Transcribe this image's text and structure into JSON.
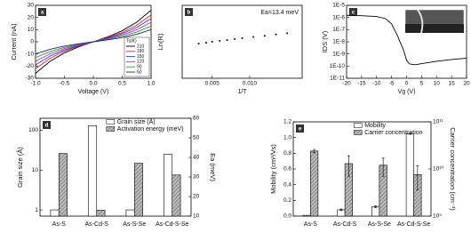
{
  "chart_data": [
    {
      "type": "line",
      "label": "a",
      "xlabel": "Voltage (V)",
      "ylabel": "Current (nA)",
      "x": [
        -1,
        -0.75,
        -0.5,
        -0.25,
        0,
        0.25,
        0.5,
        0.75,
        1
      ],
      "xlim": [
        -1,
        1
      ],
      "xticks": [
        {
          "value": -1,
          "label": "-1.0"
        },
        {
          "value": -0.5,
          "label": "-0.5"
        },
        {
          "value": 0,
          "label": "0.0"
        },
        {
          "value": 0.5,
          "label": "0.5"
        },
        {
          "value": 1,
          "label": "1.0"
        }
      ],
      "ylim": [
        -30,
        30
      ],
      "yticks": [
        -30,
        -20,
        -10,
        0,
        10,
        20,
        30
      ],
      "legend_title": "Ts(K)",
      "series": [
        {
          "name": "210",
          "color": "#000000",
          "values": [
            -26,
            -16.1,
            -9.1,
            -4.1,
            0,
            4.1,
            9.1,
            16.1,
            26
          ]
        },
        {
          "name": "180",
          "color": "#e02020",
          "values": [
            -22,
            -13.6,
            -7.7,
            -3.4,
            0,
            3.4,
            7.7,
            13.6,
            22
          ]
        },
        {
          "name": "150",
          "color": "#2040e0",
          "values": [
            -19,
            -11.8,
            -6.7,
            -3,
            0,
            3,
            6.7,
            11.8,
            19
          ]
        },
        {
          "name": "120",
          "color": "#d020d0",
          "values": [
            -16,
            -9.9,
            -5.6,
            -2.5,
            0,
            2.5,
            5.6,
            9.9,
            16
          ]
        },
        {
          "name": "90",
          "color": "#20a020",
          "values": [
            -13,
            -8,
            -4.6,
            -2,
            0,
            2,
            4.6,
            8,
            13
          ]
        },
        {
          "name": "60",
          "color": "#202080",
          "values": [
            -10,
            -6.2,
            -3.5,
            -1.6,
            0,
            1.6,
            3.5,
            6.2,
            10
          ]
        }
      ]
    },
    {
      "type": "scatter",
      "label": "b",
      "xlabel": "1/T",
      "ylabel": "Ln(R)",
      "annotation": "Ea=13.4 meV",
      "x": [
        0.0032,
        0.0042,
        0.005,
        0.006,
        0.007,
        0.008,
        0.009,
        0.0105,
        0.012,
        0.0135,
        0.015
      ],
      "xlim": [
        0.001,
        0.017
      ],
      "xticks": [
        0.005,
        {
          "value": 0.01,
          "label": "0.010"
        }
      ],
      "ylim": [
        16,
        20
      ],
      "series": [
        {
          "name": "Ln(R)",
          "color": "#000000",
          "values": [
            17.9,
            17.95,
            18.0,
            18.05,
            18.1,
            18.15,
            18.2,
            18.27,
            18.33,
            18.4,
            18.47
          ]
        }
      ]
    },
    {
      "type": "line",
      "label": "c",
      "xlabel": "Vg (V)",
      "ylabel": "IDS (V)",
      "ylog": true,
      "x": [
        -20,
        -15,
        -10,
        -7,
        -5,
        -3,
        -1,
        0,
        1,
        3,
        5,
        10,
        15,
        20
      ],
      "xlim": [
        -20,
        20
      ],
      "xticks": [
        -20,
        -15,
        -10,
        -5,
        0,
        5,
        10,
        15,
        20
      ],
      "ylim": [
        1e-11,
        1e-05
      ],
      "yticks": [
        {
          "value": 1e-11,
          "label": "1E-11"
        },
        {
          "value": 1e-10,
          "label": "1E-10"
        },
        {
          "value": 1e-09,
          "label": "1E-9"
        },
        {
          "value": 1e-08,
          "label": "1E-8"
        },
        {
          "value": 1e-07,
          "label": "1E-7"
        },
        {
          "value": 1e-06,
          "label": "1E-6"
        },
        {
          "value": 1e-05,
          "label": "1E-5"
        }
      ],
      "series": [
        {
          "name": "IDS",
          "color": "#000000",
          "values": [
            1.5e-06,
            1.4e-06,
            1.2e-06,
            8e-07,
            3e-07,
            3e-08,
            2e-09,
            3e-10,
            1.5e-10,
            1.3e-10,
            1.6e-10,
            2.5e-10,
            3.5e-10,
            4.5e-10
          ]
        }
      ]
    },
    {
      "type": "bar",
      "label": "d",
      "ylabel": "Grain size (Å)",
      "y2label": "Ea (meV)",
      "ylog": true,
      "categories": [
        "As-S",
        "As-Cd-S",
        "As-S-Se",
        "As-Cd-S-Se"
      ],
      "ylim": [
        0.7,
        200
      ],
      "yticks": [
        1,
        10,
        100
      ],
      "y2lim": [
        10,
        60
      ],
      "y2ticks": [
        10,
        20,
        30,
        40,
        50,
        60
      ],
      "series": [
        {
          "name": "Grain size (Å)",
          "color": "#ffffff",
          "values": [
            1,
            130,
            1,
            25
          ]
        },
        {
          "name": "Activation energy (meV)",
          "color": "#999999",
          "pattern": "hatch",
          "axis": "y2",
          "values": [
            42,
            13,
            37,
            31
          ]
        }
      ]
    },
    {
      "type": "bar",
      "label": "e",
      "ylabel": "Mobility (cm²/Vs)",
      "y2label": "Carrier concentration (cm⁻³)",
      "y2log": true,
      "categories": [
        "As-S",
        "As-Cd-S",
        "As-S-Se",
        "As-Cd-S-Se"
      ],
      "ylim": [
        0,
        1.2
      ],
      "yticks": [
        {
          "value": 0,
          "label": "0.0"
        },
        0.2,
        0.4,
        0.6,
        0.8,
        {
          "value": 1,
          "label": "1.0"
        },
        1.2
      ],
      "y2lim": [
        1000000000.0,
        100000000000.0
      ],
      "y2ticks": [
        {
          "value": 1000000000.0,
          "label": "10⁹"
        },
        {
          "value": 10000000000.0,
          "label": "10¹⁰"
        },
        {
          "value": 100000000000.0,
          "label": "10¹¹"
        }
      ],
      "series": [
        {
          "name": "Mobility",
          "color": "#ffffff",
          "values": [
            0.01,
            0.08,
            0.12,
            1.05
          ],
          "errors": [
            0,
            0.01,
            0.01,
            0.01
          ]
        },
        {
          "name": "Carrier concentration",
          "color": "#999999",
          "pattern": "hatch",
          "axis": "y2",
          "values": [
            24000000000.0,
            13000000000.0,
            12000000000.0,
            7600000000.0
          ],
          "errors": [
            2000000000.0,
            6000000000.0,
            5000000000.0,
            4000000000.0
          ]
        }
      ]
    }
  ]
}
